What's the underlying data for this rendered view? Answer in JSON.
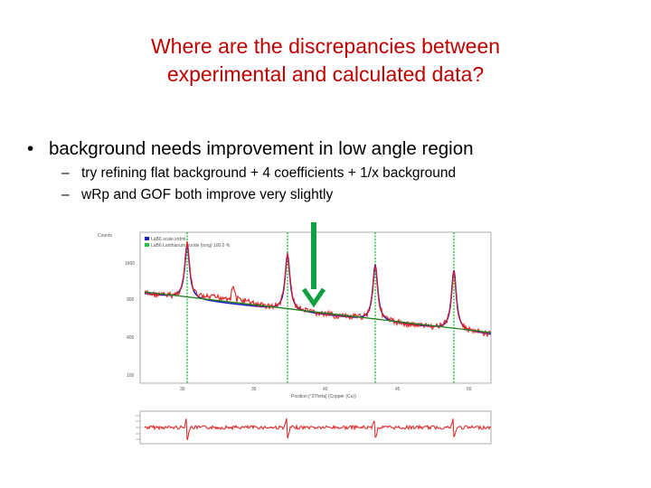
{
  "slide": {
    "title_line1": "Where are the discrepancies between",
    "title_line2": "experimental and calculated data?",
    "bullet": "background needs improvement in low angle region",
    "sub_items": [
      "try refining flat background + 4 coefficients + 1/x background",
      "wRp and GOF both improve very slightly"
    ]
  },
  "chart_data": {
    "type": "line",
    "ylabel": "Counts",
    "xlabel": "Position [°2Theta] (Copper (Cu))",
    "x_ticks": [
      "30",
      "35",
      "40",
      "45",
      "50"
    ],
    "y_ticks": [
      "1600",
      "900",
      "400",
      "100"
    ],
    "legend": [
      "LaB6 scale.xrdml",
      "LaB6 Lanthanum boride (long) 100.0 %"
    ],
    "series_colors": {
      "observed": "#e02020",
      "calculated": "#2020c0",
      "background": "#208020",
      "peak_markers": "#20c040"
    },
    "peak_positions": [
      30.4,
      37.4,
      43.5,
      49.0
    ],
    "arrow_color": "#10a040",
    "residual_panel": true
  }
}
